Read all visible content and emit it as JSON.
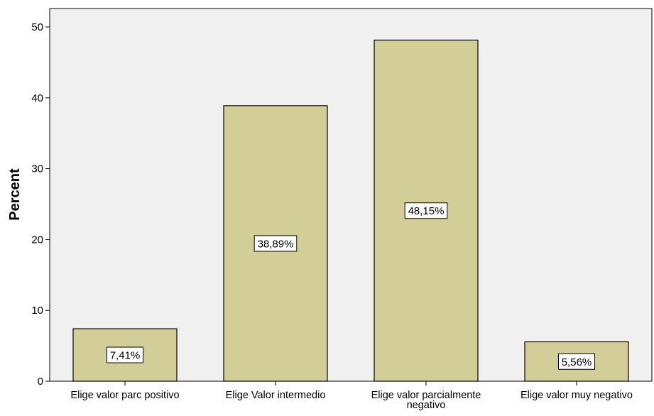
{
  "chart_data": {
    "type": "bar",
    "categories": [
      "Elige valor parc positivo",
      "Elige Valor intermedio",
      "Elige valor parcialmente negativo",
      "Elige valor muy negativo"
    ],
    "values": [
      7.41,
      38.89,
      48.15,
      5.56
    ],
    "data_labels": [
      "7,41%",
      "38,89%",
      "48,15%",
      "5,56%"
    ],
    "ylabel": "Percent",
    "xlabel": "",
    "ylim": [
      0,
      52
    ],
    "yticks": [
      0,
      10,
      20,
      30,
      40,
      50
    ],
    "ytick_labels": [
      "0",
      "10",
      "20",
      "30",
      "40",
      "50"
    ],
    "grid": false,
    "legend": "none"
  },
  "colors": {
    "plot_background": "#f0f0f0",
    "bar_fill": "#d3ce98",
    "bar_stroke": "#000000",
    "label_box": "#ffffff"
  }
}
